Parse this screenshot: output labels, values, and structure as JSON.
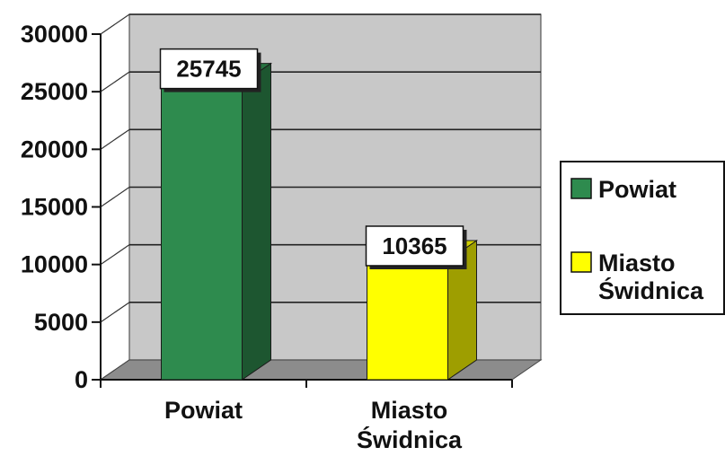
{
  "chart_data": {
    "type": "bar",
    "style": "3d-column",
    "categories": [
      "Powiat",
      "Miasto Świdnica"
    ],
    "category_label_lines": [
      [
        "Powiat"
      ],
      [
        "Miasto",
        "Świdnica"
      ]
    ],
    "values": [
      25745,
      10365
    ],
    "data_labels": [
      "25745",
      "10365"
    ],
    "colors": [
      "#2e8b4e",
      "#ffff00"
    ],
    "ylim": [
      0,
      30000
    ],
    "yticks": [
      0,
      5000,
      10000,
      15000,
      20000,
      25000,
      30000
    ],
    "ytick_labels": [
      "0",
      "5000",
      "10000",
      "15000",
      "20000",
      "25000",
      "30000"
    ],
    "grid": true,
    "legend": {
      "position": "right",
      "entries": [
        {
          "lines": [
            "Powiat"
          ],
          "color": "#2e8b4e"
        },
        {
          "lines": [
            "Miasto",
            "Świdnica"
          ],
          "color": "#ffff00"
        }
      ]
    },
    "title": "",
    "xlabel": "",
    "ylabel": ""
  }
}
